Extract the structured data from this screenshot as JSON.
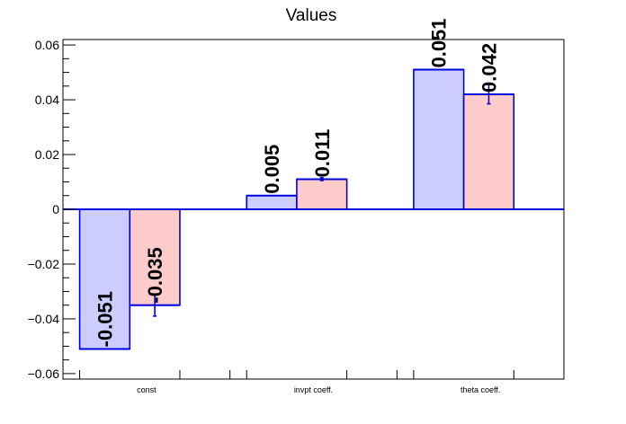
{
  "chart_data": {
    "type": "bar",
    "title": "Values",
    "xlabel": "",
    "ylabel": "",
    "categories": [
      "const",
      "invpt coeff.",
      "theta coeff."
    ],
    "ylim": [
      -0.062,
      0.062
    ],
    "yticks": [
      -0.06,
      -0.04,
      -0.02,
      0,
      0.02,
      0.04,
      0.06
    ],
    "ytick_labels": [
      "−0.06",
      "−0.04",
      "−0.02",
      "0",
      "0.02",
      "0.04",
      "0.06"
    ],
    "series": [
      {
        "values": [
          -0.051,
          0.005,
          0.051
        ],
        "errors": [
          0,
          0,
          0
        ],
        "labels": [
          "-0.051",
          "0.005",
          "0.051"
        ],
        "fill": "#ccccff",
        "stroke": "#0000dd"
      },
      {
        "values": [
          -0.035,
          0.011,
          0.042
        ],
        "errors": [
          0.004,
          0.0005,
          0.0035
        ],
        "labels": [
          "-0.035",
          "0.011",
          "0.042"
        ],
        "fill": "#ffcccc",
        "stroke": "#0000dd"
      }
    ],
    "grid": false,
    "legend": "none"
  }
}
